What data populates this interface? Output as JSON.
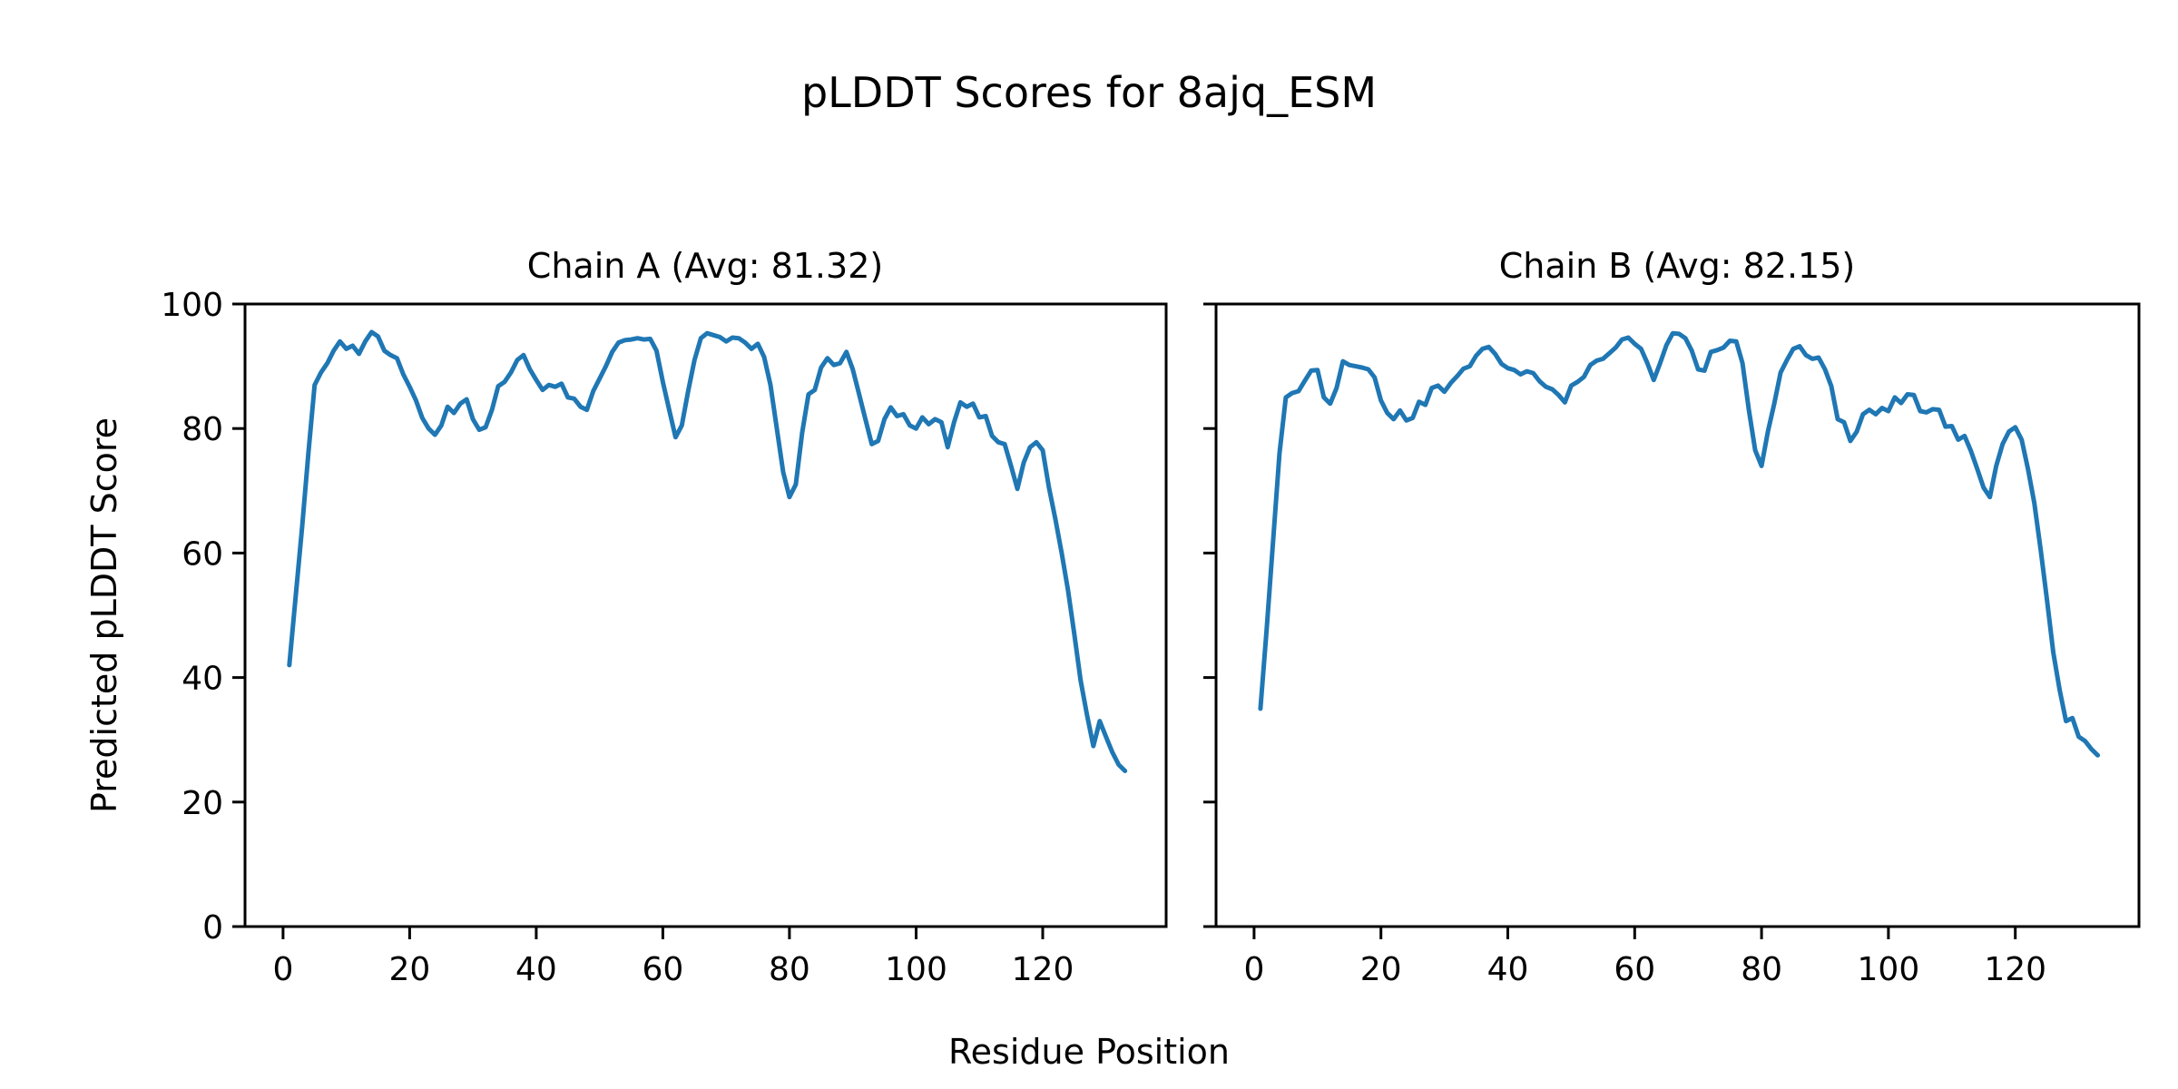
{
  "figure": {
    "suptitle": "pLDDT Scores for 8ajq_ESM",
    "xlabel": "Residue Position",
    "ylabel": "Predicted pLDDT Score"
  },
  "chart_data": [
    {
      "type": "line",
      "title": "Chain A (Avg: 81.32)",
      "series_name": "Chain A",
      "average_label": 81.32,
      "xlabel": "Residue Position",
      "ylabel": "Predicted pLDDT Score",
      "x_start": 1,
      "x_step": 1,
      "n_points": 133,
      "xlim": [
        -6,
        139.5
      ],
      "ylim": [
        0,
        100
      ],
      "xticks": [
        0,
        20,
        40,
        60,
        80,
        100,
        120
      ],
      "yticks": [
        0,
        20,
        40,
        60,
        80,
        100
      ],
      "grid": false,
      "legend": "none",
      "line_color": "#1f77b4",
      "values": [
        42.0,
        53.0,
        64.0,
        76.0,
        87.0,
        89.0,
        90.5,
        92.5,
        94.0,
        92.8,
        93.3,
        92.0,
        94.0,
        95.5,
        94.8,
        92.5,
        91.8,
        91.3,
        88.7,
        86.7,
        84.5,
        81.7,
        80.0,
        79.0,
        80.5,
        83.5,
        82.5,
        84.0,
        84.7,
        81.5,
        79.8,
        80.2,
        83.0,
        86.8,
        87.5,
        89.0,
        91.0,
        91.8,
        89.5,
        87.8,
        86.2,
        87.0,
        86.7,
        87.2,
        85.0,
        84.8,
        83.5,
        83.0,
        86.0,
        88.0,
        90.0,
        92.3,
        93.8,
        94.2,
        94.3,
        94.5,
        94.3,
        94.4,
        92.5,
        87.5,
        83.0,
        78.6,
        80.5,
        86.0,
        91.0,
        94.5,
        95.3,
        95.0,
        94.7,
        94.0,
        94.6,
        94.5,
        93.8,
        92.8,
        93.6,
        91.5,
        87.0,
        80.0,
        73.0,
        69.0,
        71.0,
        79.3,
        85.5,
        86.2,
        89.8,
        91.3,
        90.2,
        90.5,
        92.3,
        89.5,
        85.5,
        81.5,
        77.5,
        78.0,
        81.5,
        83.4,
        82.0,
        82.3,
        80.5,
        80.0,
        81.8,
        80.7,
        81.5,
        81.0,
        77.0,
        81.0,
        84.2,
        83.5,
        84.0,
        81.8,
        82.0,
        78.8,
        77.8,
        77.5,
        74.0,
        70.3,
        74.5,
        77.0,
        77.8,
        76.5,
        70.5,
        65.5,
        60.0,
        54.0,
        47.0,
        39.5,
        34.0,
        29.0,
        33.0,
        30.5,
        28.0,
        26.0,
        25.0
      ]
    },
    {
      "type": "line",
      "title": "Chain B (Avg: 82.15)",
      "series_name": "Chain B",
      "average_label": 82.15,
      "xlabel": "Residue Position",
      "ylabel": "Predicted pLDDT Score",
      "x_start": 1,
      "x_step": 1,
      "n_points": 133,
      "xlim": [
        -6,
        139.5
      ],
      "ylim": [
        0,
        100
      ],
      "xticks": [
        0,
        20,
        40,
        60,
        80,
        100,
        120
      ],
      "yticks": [
        0,
        20,
        40,
        60,
        80,
        100
      ],
      "grid": false,
      "legend": "none",
      "line_color": "#1f77b4",
      "values": [
        35.0,
        48.0,
        62.0,
        76.0,
        85.0,
        85.7,
        86.0,
        87.7,
        89.3,
        89.4,
        85.0,
        84.0,
        86.5,
        90.8,
        90.2,
        90.0,
        89.8,
        89.5,
        88.2,
        84.5,
        82.5,
        81.5,
        82.9,
        81.3,
        81.7,
        84.3,
        83.8,
        86.5,
        86.9,
        85.9,
        87.3,
        88.4,
        89.6,
        90.0,
        91.7,
        92.8,
        93.1,
        92.0,
        90.4,
        89.7,
        89.4,
        88.7,
        89.2,
        88.9,
        87.6,
        86.7,
        86.3,
        85.4,
        84.2,
        86.9,
        87.5,
        88.3,
        90.2,
        90.9,
        91.2,
        92.1,
        93.0,
        94.3,
        94.6,
        93.6,
        92.8,
        90.5,
        87.8,
        90.5,
        93.4,
        95.3,
        95.2,
        94.5,
        92.5,
        89.5,
        89.3,
        92.3,
        92.6,
        93.0,
        94.1,
        94.0,
        90.5,
        83.0,
        76.5,
        74.0,
        79.5,
        84.0,
        89.0,
        91.0,
        92.8,
        93.2,
        91.8,
        91.2,
        91.4,
        89.5,
        86.8,
        81.5,
        81.0,
        78.0,
        79.5,
        82.3,
        83.0,
        82.3,
        83.3,
        82.8,
        85.0,
        84.1,
        85.5,
        85.4,
        82.8,
        82.6,
        83.1,
        83.0,
        80.3,
        80.4,
        78.2,
        78.8,
        76.4,
        73.5,
        70.5,
        69.0,
        74.0,
        77.5,
        79.5,
        80.2,
        78.2,
        73.5,
        68.0,
        60.5,
        52.5,
        44.0,
        38.0,
        33.0,
        33.5,
        30.5,
        29.8,
        28.5,
        27.5
      ]
    }
  ]
}
